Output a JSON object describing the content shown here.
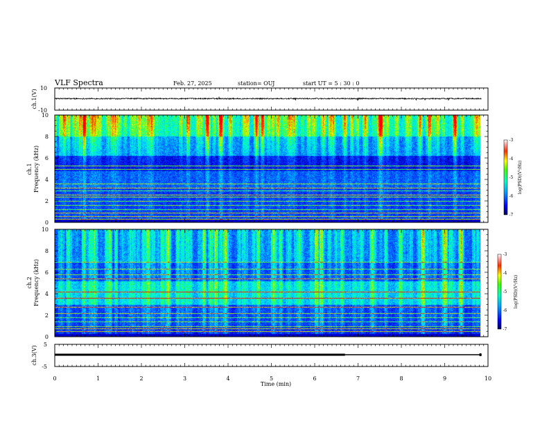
{
  "header": {
    "title": "VLF Spectra",
    "date": "Feb. 27, 2025",
    "station": "station= OUJ",
    "start_ut": "start  UT =   5  : 30 : 0"
  },
  "chart_data": [
    {
      "type": "line",
      "name": "ch1-waveform",
      "ylabel": "ch.1(V)",
      "ylim": [
        -10,
        10
      ],
      "yticks": [
        "10",
        "-10"
      ],
      "xlim": [
        0,
        10
      ],
      "series_level": 0.4,
      "noise_amplitude": 0.5
    },
    {
      "type": "heatmap",
      "name": "ch1-spectrogram",
      "ylabel": "ch.1\nFrequency (kHz)",
      "ylim": [
        0,
        10
      ],
      "yticks": [
        "0",
        "2",
        "4",
        "6",
        "8",
        "10"
      ],
      "xlim": [
        0,
        9.85
      ],
      "colorbar": {
        "label": "log(PSD)(V²/Hz)",
        "range": [
          -7,
          -3
        ],
        "ticks": [
          "-3",
          "-4",
          "-5",
          "-6",
          "-7"
        ]
      }
    },
    {
      "type": "heatmap",
      "name": "ch2-spectrogram",
      "ylabel": "ch.2\nFrequency (kHz)",
      "ylim": [
        0,
        10
      ],
      "yticks": [
        "0",
        "2",
        "4",
        "6",
        "8",
        "10"
      ],
      "xlim": [
        0,
        9.85
      ],
      "colorbar": {
        "label": "log(PSD)(V²/Hz)",
        "range": [
          -7,
          -3
        ],
        "ticks": [
          "-3",
          "-4",
          "-5",
          "-6",
          "-7"
        ]
      }
    },
    {
      "type": "line",
      "name": "ch3-waveform",
      "ylabel": "ch.3(V)",
      "ylim": [
        -5,
        5
      ],
      "yticks": [
        "5",
        "-5"
      ],
      "xlim": [
        0,
        10
      ],
      "segments": [
        {
          "x": [
            0,
            6.7
          ],
          "y": 0.3,
          "thickness": "thick"
        },
        {
          "x": [
            6.7,
            9.85
          ],
          "y": 0.3,
          "thickness": "thin"
        }
      ]
    }
  ],
  "x_axis": {
    "label": "Time (min)",
    "range": [
      0,
      10
    ],
    "ticks": [
      "0",
      "1",
      "2",
      "3",
      "4",
      "5",
      "6",
      "7",
      "8",
      "9",
      "10"
    ]
  }
}
